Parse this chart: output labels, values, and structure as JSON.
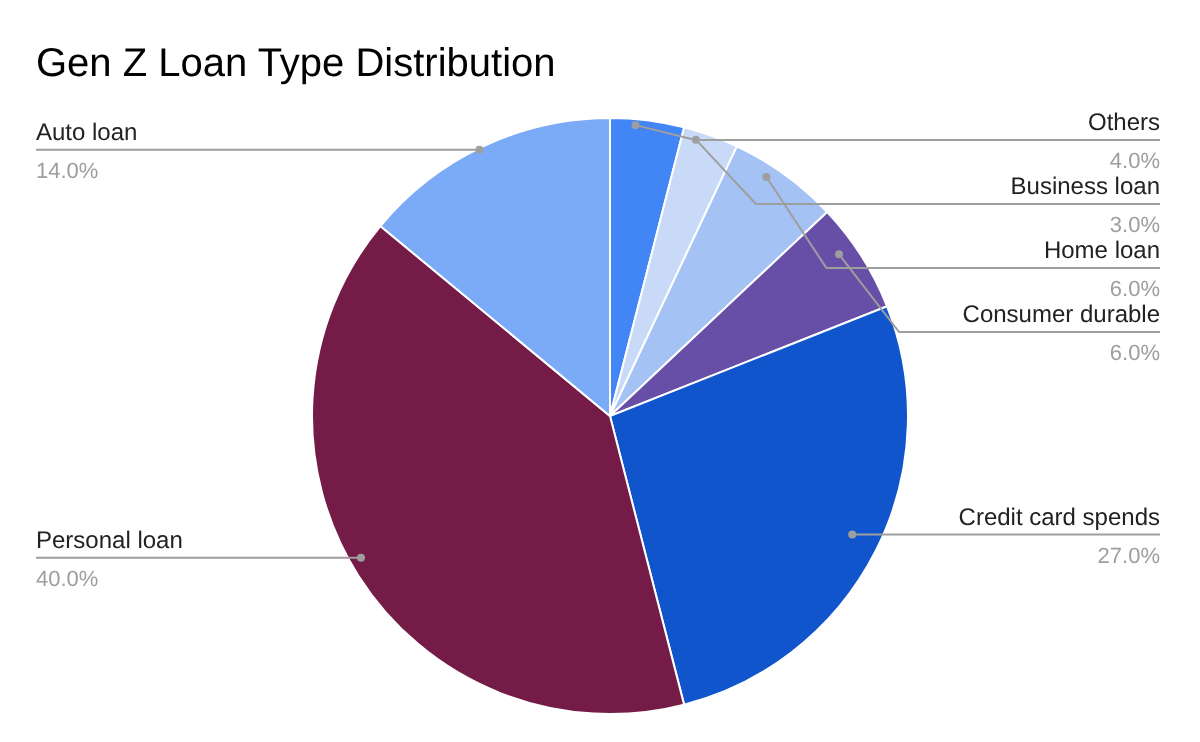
{
  "chart_data": {
    "type": "pie",
    "title": "Gen Z Loan Type Distribution",
    "categories": [
      "Others",
      "Business loan",
      "Home loan",
      "Consumer durable",
      "Credit card spends",
      "Personal loan",
      "Auto loan"
    ],
    "values": [
      4,
      3,
      6,
      6,
      27,
      40,
      14
    ],
    "value_labels": [
      "4.0%",
      "3.0%",
      "6.0%",
      "6.0%",
      "27.0%",
      "40.0%",
      "14.0%"
    ],
    "colors": [
      "#4285f4",
      "#c9daf8",
      "#a4c2f4",
      "#674ea7",
      "#1155cc",
      "#741b47",
      "#7baaf7"
    ],
    "legend": false
  }
}
